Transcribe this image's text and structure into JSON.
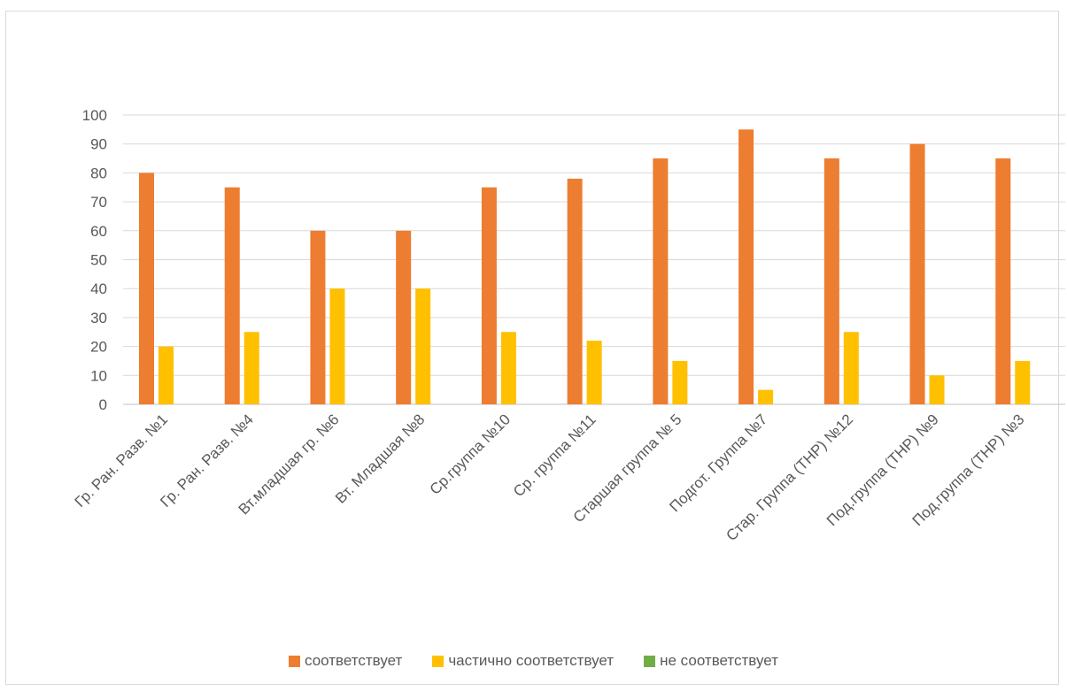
{
  "chart_data": {
    "type": "bar",
    "title": "",
    "xlabel": "",
    "ylabel": "",
    "ylim": [
      0,
      100
    ],
    "yticks": [
      0,
      10,
      20,
      30,
      40,
      50,
      60,
      70,
      80,
      90,
      100
    ],
    "grid": true,
    "legend_position": "bottom",
    "categories": [
      "Гр. Ран. Разв. №1",
      "Гр. Ран. Разв. №4",
      "Вт.младшая гр. №6",
      "Вт. Младшая №8",
      "Ср.группа №10",
      "Ср. группа №11",
      "Старшая группа № 5",
      "Подгот. Группа №7",
      "Стар. Группа  (ТНР) №12",
      "Под.группа (ТНР) №9",
      "Под.группа (ТНР) №3"
    ],
    "series": [
      {
        "name": "соответствует",
        "color": "#ED7D31",
        "values": [
          80,
          75,
          60,
          60,
          75,
          78,
          85,
          95,
          85,
          90,
          85
        ]
      },
      {
        "name": "частично соответствует",
        "color": "#FFC000",
        "values": [
          20,
          25,
          40,
          40,
          25,
          22,
          15,
          5,
          25,
          10,
          15
        ]
      },
      {
        "name": "не соответствует",
        "color": "#70AD47",
        "values": [
          0,
          0,
          0,
          0,
          0,
          0,
          0,
          0,
          0,
          0,
          0
        ]
      }
    ]
  }
}
